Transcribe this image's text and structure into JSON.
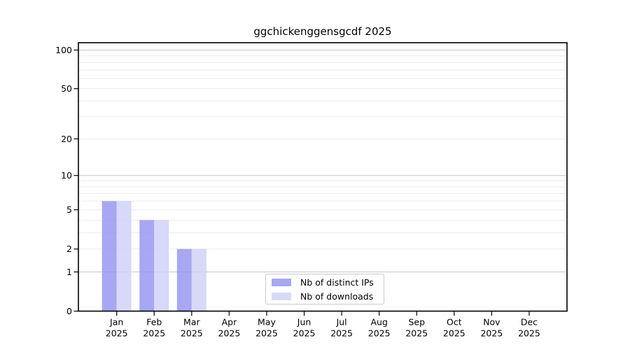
{
  "page": {
    "background": "#ffffff"
  },
  "chart_data": {
    "type": "bar",
    "title": "ggchickenggensgcdf 2025",
    "categories": [
      "Jan",
      "Feb",
      "Mar",
      "Apr",
      "May",
      "Jun",
      "Jul",
      "Aug",
      "Sep",
      "Oct",
      "Nov",
      "Dec"
    ],
    "x_sublabel": "2025",
    "series": [
      {
        "name": "Nb of distinct IPs",
        "color": "#9898f2",
        "opacity": 0.85,
        "values": [
          6,
          4,
          2,
          0,
          0,
          0,
          0,
          0,
          0,
          0,
          0,
          0
        ]
      },
      {
        "name": "Nb of downloads",
        "color": "#d1d1f7",
        "opacity": 0.85,
        "values": [
          6,
          4,
          2,
          0,
          0,
          0,
          0,
          0,
          0,
          0,
          0,
          0
        ]
      }
    ],
    "xlabel": "",
    "ylabel": "",
    "yscale": "log1p",
    "ylim": [
      0,
      113
    ],
    "yticks": [
      0,
      1,
      2,
      5,
      10,
      20,
      50,
      100
    ],
    "grid": {
      "major_values": [
        1,
        10,
        100
      ],
      "minor_values": [
        2,
        3,
        4,
        5,
        6,
        7,
        8,
        9,
        20,
        30,
        40,
        50,
        60,
        70,
        80,
        90
      ],
      "major_color": "#c8c8c8",
      "minor_color": "#eaeaea"
    },
    "axis_color": "#000000",
    "legend_position": "lower center inside"
  }
}
